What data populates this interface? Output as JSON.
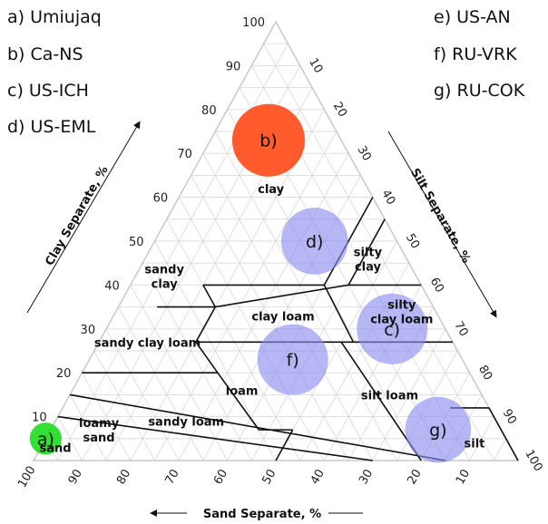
{
  "chart_data": {
    "type": "ternary",
    "axes": {
      "clay": {
        "label": "Clay Separate, %",
        "ticks": [
          "10",
          "20",
          "30",
          "40",
          "50",
          "60",
          "70",
          "80",
          "90",
          "100"
        ]
      },
      "silt": {
        "label": "Silt Separate, %",
        "ticks": [
          "10",
          "20",
          "30",
          "40",
          "50",
          "60",
          "70",
          "80",
          "90",
          "100"
        ]
      },
      "sand": {
        "label": "Sand Separate, %",
        "ticks": [
          "100",
          "90",
          "80",
          "70",
          "60",
          "50",
          "40",
          "30",
          "20",
          "10"
        ]
      }
    },
    "grid": true,
    "legend": [
      {
        "key": "a",
        "text": "a) Umiujaq"
      },
      {
        "key": "b",
        "text": "b) Ca-NS"
      },
      {
        "key": "c",
        "text": "c) US-ICH"
      },
      {
        "key": "d",
        "text": "d) US-EML"
      },
      {
        "key": "e",
        "text": "e) US-AN"
      },
      {
        "key": "f",
        "text": "f) RU-VRK"
      },
      {
        "key": "g",
        "text": "g) RU-COK"
      }
    ],
    "texture_classes": [
      {
        "name": "clay",
        "lines": [
          "clay"
        ],
        "clay": 62,
        "silt": 18
      },
      {
        "name": "silty-clay",
        "lines": [
          "silty",
          "clay"
        ],
        "clay": 46,
        "silt": 46
      },
      {
        "name": "sandy-clay",
        "lines": [
          "sandy",
          "clay"
        ],
        "clay": 42,
        "silt": 6
      },
      {
        "name": "clay-loam",
        "lines": [
          "clay loam"
        ],
        "clay": 33,
        "silt": 35
      },
      {
        "name": "silty-clay-loam",
        "lines": [
          "silty",
          "clay loam"
        ],
        "clay": 34,
        "silt": 59
      },
      {
        "name": "sandy-clay-loam",
        "lines": [
          "sandy clay loam"
        ],
        "clay": 27,
        "silt": 10
      },
      {
        "name": "loam",
        "lines": [
          "loam"
        ],
        "clay": 16,
        "silt": 35
      },
      {
        "name": "silt-loam",
        "lines": [
          "silt loam"
        ],
        "clay": 15,
        "silt": 66
      },
      {
        "name": "sandy-loam",
        "lines": [
          "sandy loam"
        ],
        "clay": 9,
        "silt": 27
      },
      {
        "name": "loamy-sand",
        "lines": [
          "loamy",
          "sand"
        ],
        "clay": 7,
        "silt": 10
      },
      {
        "name": "sand",
        "lines": [
          "sand"
        ],
        "clay": 3,
        "silt": 3
      },
      {
        "name": "silt",
        "lines": [
          "silt"
        ],
        "clay": 4,
        "silt": 89
      }
    ],
    "sites": [
      {
        "label": "a)",
        "clay": 5,
        "silt": 0,
        "radius": 3.3,
        "color": "#22dd22"
      },
      {
        "label": "b)",
        "clay": 73,
        "silt": 12,
        "radius": 7.5,
        "color": "#ff4d1a"
      },
      {
        "label": "c)",
        "clay": 30,
        "silt": 59,
        "radius": 7.3,
        "color": "#8a8aef"
      },
      {
        "label": "d)",
        "clay": 50,
        "silt": 33,
        "radius": 6.9,
        "color": "#8a8aef"
      },
      {
        "label": "f)",
        "clay": 23,
        "silt": 42,
        "radius": 7.3,
        "color": "#8a8aef"
      },
      {
        "label": "g)",
        "clay": 7,
        "silt": 80,
        "radius": 6.8,
        "color": "#8a8aef"
      }
    ]
  }
}
